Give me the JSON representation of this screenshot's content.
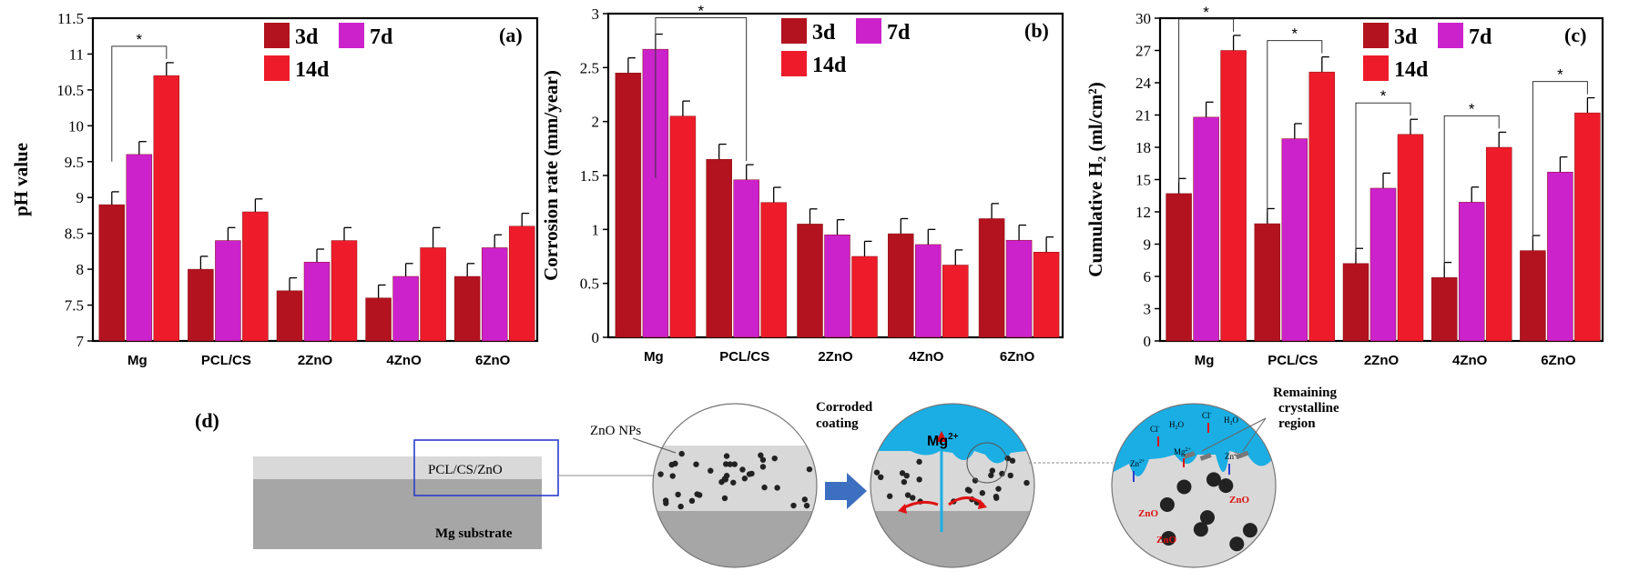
{
  "colors": {
    "d3": "#b2131e",
    "d7": "#cc22cc",
    "d14": "#ee1c2a",
    "axis": "#000000",
    "liquid": "#1aaee4",
    "coating": "#d8d8d8",
    "substrate": "#a6a6a6",
    "arrow_blue": "#3d6fc0",
    "box_blue": "#2b3ccc",
    "red": "#e01010"
  },
  "chart_data": [
    {
      "type": "bar",
      "panel": "(a)",
      "title": "",
      "xlabel": "",
      "ylabel": "pH value",
      "ylim": [
        7,
        11.5
      ],
      "yticks": [
        "7",
        "7.5",
        "8",
        "8.5",
        "9",
        "9.5",
        "10",
        "10.5",
        "11",
        "11.5"
      ],
      "categories": [
        "Mg",
        "PCL/CS",
        "2ZnO",
        "4ZnO",
        "6ZnO"
      ],
      "series": [
        {
          "name": "3d",
          "values": [
            8.9,
            8.0,
            7.7,
            7.6,
            7.9
          ],
          "errors": [
            0.18,
            0.18,
            0.18,
            0.18,
            0.18
          ]
        },
        {
          "name": "7d",
          "values": [
            9.6,
            8.4,
            8.1,
            7.9,
            8.3
          ],
          "errors": [
            0.18,
            0.18,
            0.18,
            0.18,
            0.18
          ]
        },
        {
          "name": "14d",
          "values": [
            10.7,
            8.8,
            8.4,
            8.3,
            8.6
          ],
          "errors": [
            0.18,
            0.18,
            0.18,
            0.28,
            0.18
          ]
        }
      ],
      "significance": [
        {
          "label": "*",
          "from_cat": 0,
          "from_series": 0,
          "to_cat": 0,
          "to_series": 2
        }
      ]
    },
    {
      "type": "bar",
      "panel": "(b)",
      "title": "",
      "xlabel": "",
      "ylabel": "Corrosion rate (mm/year)",
      "ylim": [
        0,
        3
      ],
      "yticks": [
        "0",
        "0.5",
        "1",
        "1.5",
        "2",
        "2.5",
        "3"
      ],
      "categories": [
        "Mg",
        "PCL/CS",
        "2ZnO",
        "4ZnO",
        "6ZnO"
      ],
      "series": [
        {
          "name": "3d",
          "values": [
            2.45,
            1.65,
            1.05,
            0.96,
            1.1
          ],
          "errors": [
            0.14,
            0.14,
            0.14,
            0.14,
            0.14
          ]
        },
        {
          "name": "7d",
          "values": [
            2.67,
            1.46,
            0.95,
            0.86,
            0.9
          ],
          "errors": [
            0.14,
            0.14,
            0.14,
            0.14,
            0.14
          ]
        },
        {
          "name": "14d",
          "values": [
            2.05,
            1.25,
            0.75,
            0.67,
            0.79
          ],
          "errors": [
            0.14,
            0.14,
            0.14,
            0.14,
            0.14
          ]
        }
      ],
      "significance": [
        {
          "label": "*",
          "from_cat": 0,
          "from_series": 1,
          "to_cat": 1,
          "to_series": 1
        }
      ]
    },
    {
      "type": "bar",
      "panel": "(c)",
      "title": "",
      "xlabel": "",
      "ylabel": "Cumulative H₂ (ml/cm²)",
      "ylim": [
        0,
        30
      ],
      "yticks": [
        "0",
        "3",
        "6",
        "9",
        "12",
        "15",
        "18",
        "21",
        "24",
        "27",
        "30"
      ],
      "categories": [
        "Mg",
        "PCL/CS",
        "2ZnO",
        "4ZnO",
        "6ZnO"
      ],
      "series": [
        {
          "name": "3d",
          "values": [
            13.7,
            10.9,
            7.2,
            5.9,
            8.4
          ],
          "errors": [
            1.4,
            1.4,
            1.4,
            1.4,
            1.4
          ]
        },
        {
          "name": "7d",
          "values": [
            20.8,
            18.8,
            14.2,
            12.9,
            15.7
          ],
          "errors": [
            1.4,
            1.4,
            1.4,
            1.4,
            1.4
          ]
        },
        {
          "name": "14d",
          "values": [
            27.0,
            25.0,
            19.2,
            18.0,
            21.2
          ],
          "errors": [
            1.4,
            1.4,
            1.4,
            1.4,
            1.4
          ]
        }
      ],
      "significance": [
        {
          "label": "*",
          "from_cat": 0,
          "from_series": 0,
          "to_cat": 0,
          "to_series": 2
        },
        {
          "label": "*",
          "from_cat": 1,
          "from_series": 0,
          "to_cat": 1,
          "to_series": 2
        },
        {
          "label": "*",
          "from_cat": 2,
          "from_series": 0,
          "to_cat": 2,
          "to_series": 2
        },
        {
          "label": "*",
          "from_cat": 3,
          "from_series": 0,
          "to_cat": 3,
          "to_series": 2
        },
        {
          "label": "*",
          "from_cat": 4,
          "from_series": 0,
          "to_cat": 4,
          "to_series": 2
        }
      ]
    }
  ],
  "schematic": {
    "panel_label": "(d)",
    "coating_label": "PCL/CS/ZnO",
    "substrate_label": "Mg substrate",
    "zno_nps_label": "ZnO NPs",
    "corroded_coating_label": "Corroded coating",
    "mg_ion": "Mg",
    "mg_ion_charge": "2+",
    "remaining_label": "Remaining crystalline region",
    "ion_cl": "Cl",
    "ion_cl_sup": "-",
    "ion_h2o": "H",
    "ion_h2o_sub": "2",
    "ion_h2o_tail": "O",
    "ion_zn": "Zn",
    "ion_zn_sup": "2+",
    "ion_mg_small": "Mg",
    "ion_mg_small_sup": "2+",
    "zno_label": "ZnO"
  }
}
